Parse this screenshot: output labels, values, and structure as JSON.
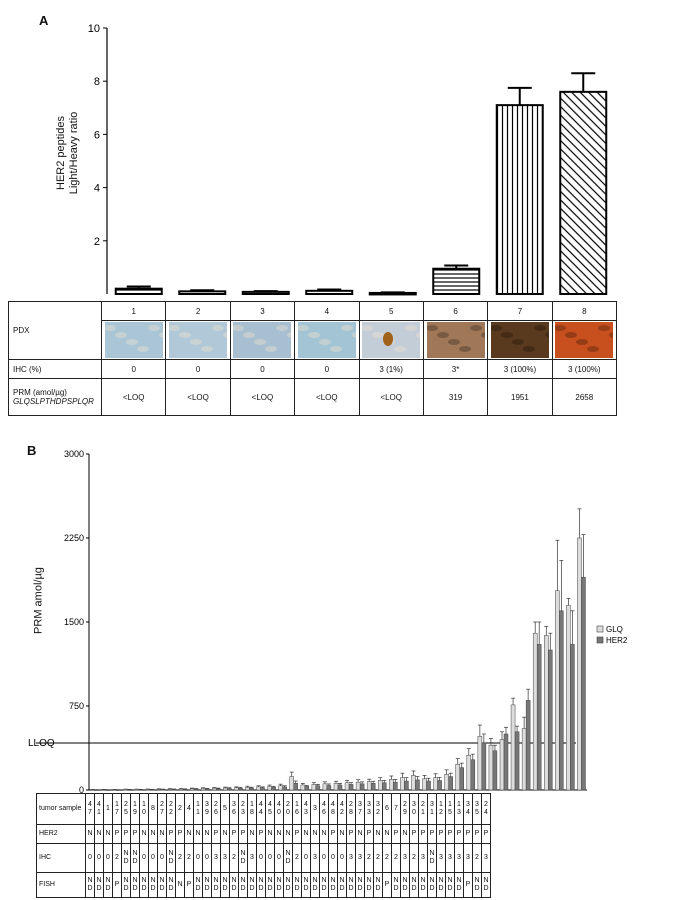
{
  "panel_a": {
    "letter": "A",
    "ylabel_line1": "HER2 peptides",
    "ylabel_line2": "Light/Heavy ratio",
    "table": {
      "row_labels": {
        "pdx": "PDX",
        "ihc": "IHC (%)",
        "prm_line1": "PRM (amol/µg)",
        "prm_line2": "GLQSLPTHDPSPLQR"
      },
      "columns": [
        {
          "pdx": "1",
          "ihc": "0",
          "prm": "<LOQ",
          "tissue_color": "#a9c5d6"
        },
        {
          "pdx": "2",
          "ihc": "0",
          "prm": "<LOQ",
          "tissue_color": "#b0c8d8"
        },
        {
          "pdx": "3",
          "ihc": "0",
          "prm": "<LOQ",
          "tissue_color": "#a7bfd0"
        },
        {
          "pdx": "4",
          "ihc": "0",
          "prm": "<LOQ",
          "tissue_color": "#a3c4d4"
        },
        {
          "pdx": "5",
          "ihc": "3 (1%)",
          "prm": "<LOQ",
          "tissue_color": "#c3cdd8"
        },
        {
          "pdx": "6",
          "ihc": "3*",
          "prm": "319",
          "tissue_color": "#a07858"
        },
        {
          "pdx": "7",
          "ihc": "3 (100%)",
          "prm": "1951",
          "tissue_color": "#5a3a1e"
        },
        {
          "pdx": "8",
          "ihc": "3 (100%)",
          "prm": "2658",
          "tissue_color": "#c8501e"
        }
      ]
    }
  },
  "panel_b": {
    "letter": "B",
    "ylabel": "PRM amol/µg",
    "lloq_label": "LLOQ",
    "legend": [
      {
        "name": "GLQ",
        "color": "#dddddd"
      },
      {
        "name": "HER2",
        "color": "#777777"
      }
    ],
    "table": {
      "row_labels": {
        "tumor": "tumor sample",
        "her2": "HER2",
        "ihc": "IHC",
        "fish": "FISH"
      },
      "tumor": [
        "4 7",
        "4 1",
        "1",
        "1 7",
        "2 5",
        "1 9",
        "1 0",
        "8",
        "2 7",
        "2 2",
        "2",
        "4",
        "1 1",
        "3 9",
        "2 6",
        "5",
        "3 6",
        "2 3",
        "1 8",
        "4 4",
        "4 5",
        "4 0",
        "2 0",
        "1 6",
        "4 3",
        "3",
        "4 6",
        "4 8",
        "4 2",
        "2 8",
        "3 7",
        "3 3",
        "3 2",
        "6",
        "7",
        "2 9",
        "3 0",
        "2 1",
        "3 1",
        "1 2",
        "1 5",
        "1 3",
        "3 4",
        "3 5",
        "2 4"
      ],
      "her2": [
        "N",
        "N",
        "N",
        "P",
        "P",
        "P",
        "N",
        "N",
        "N",
        "P",
        "P",
        "N",
        "N",
        "N",
        "P",
        "N",
        "P",
        "P",
        "N",
        "P",
        "N",
        "N",
        "N",
        "P",
        "N",
        "N",
        "N",
        "P",
        "N",
        "P",
        "N",
        "P",
        "N",
        "N",
        "P",
        "N",
        "P",
        "P",
        "P",
        "P",
        "P",
        "P",
        "P",
        "P",
        "P"
      ],
      "ihc": [
        "0",
        "0",
        "0",
        "2",
        "N D",
        "N D",
        "0",
        "0",
        "0",
        "N D",
        "2",
        "2",
        "0",
        "0",
        "3",
        "3",
        "2",
        "N D",
        "3",
        "0",
        "0",
        "0",
        "N D",
        "2",
        "0",
        "3",
        "0",
        "0",
        "0",
        "3",
        "3",
        "2",
        "2",
        "2",
        "2",
        "3",
        "2",
        "3",
        "N D",
        "3",
        "3",
        "3",
        "3",
        "2",
        "3"
      ],
      "fish": [
        "N D",
        "N D",
        "N D",
        "P",
        "N D",
        "N D",
        "N D",
        "N D",
        "N D",
        "N D",
        "N",
        "P",
        "N D",
        "N D",
        "N D",
        "N D",
        "N D",
        "N D",
        "N D",
        "N D",
        "N D",
        "N D",
        "N D",
        "N D",
        "N D",
        "N D",
        "N D",
        "N D",
        "N D",
        "N D",
        "N D",
        "N D",
        "N D",
        "P",
        "N D",
        "N D",
        "N D",
        "N D",
        "N D",
        "N D",
        "N D",
        "N D",
        "P",
        "N D",
        "N D"
      ]
    }
  },
  "chart_data": [
    {
      "type": "bar",
      "title": "",
      "xlabel": "PDX",
      "ylabel": "HER2 peptides Light/Heavy ratio",
      "ylim": [
        0,
        10
      ],
      "yticks": [
        2,
        4,
        6,
        8,
        10
      ],
      "categories": [
        "1",
        "2",
        "3",
        "4",
        "5",
        "6",
        "7",
        "8"
      ],
      "values": [
        0.2,
        0.1,
        0.08,
        0.12,
        0.04,
        0.95,
        7.1,
        7.6
      ],
      "errors": [
        0.08,
        0.04,
        0.03,
        0.05,
        0.02,
        0.12,
        0.65,
        0.7
      ],
      "patterns": [
        "horizontal",
        "horizontal",
        "horizontal",
        "horizontal",
        "horizontal",
        "horizontal",
        "vertical",
        "diagonal"
      ]
    },
    {
      "type": "bar",
      "title": "",
      "xlabel": "tumor sample",
      "ylabel": "PRM amol/µg",
      "ylim": [
        0,
        3000
      ],
      "yticks": [
        0,
        750,
        1500,
        2250,
        3000
      ],
      "lloq": 420,
      "categories": [
        "47",
        "41",
        "1",
        "17",
        "25",
        "19",
        "10",
        "8",
        "27",
        "22",
        "2",
        "4",
        "11",
        "39",
        "26",
        "5",
        "36",
        "23",
        "18",
        "44",
        "45",
        "40",
        "20",
        "16",
        "43",
        "3",
        "46",
        "48",
        "42",
        "28",
        "37",
        "33",
        "32",
        "6",
        "7",
        "29",
        "30",
        "21",
        "31",
        "12",
        "15",
        "13",
        "34",
        "35",
        "24"
      ],
      "series": [
        {
          "name": "GLQ",
          "values": [
            3,
            3,
            3,
            5,
            5,
            6,
            7,
            8,
            9,
            12,
            14,
            16,
            18,
            20,
            24,
            28,
            32,
            38,
            120,
            45,
            50,
            55,
            60,
            65,
            70,
            75,
            85,
            95,
            110,
            130,
            100,
            110,
            140,
            230,
            310,
            480,
            400,
            450,
            760,
            550,
            1400,
            1380,
            1780,
            1650,
            2250
          ],
          "errors": [
            2,
            2,
            2,
            3,
            3,
            3,
            4,
            4,
            4,
            5,
            6,
            6,
            8,
            8,
            10,
            10,
            12,
            14,
            40,
            14,
            15,
            18,
            18,
            20,
            22,
            22,
            25,
            30,
            40,
            40,
            30,
            35,
            40,
            50,
            60,
            100,
            60,
            70,
            60,
            100,
            100,
            80,
            450,
            60,
            260
          ]
        },
        {
          "name": "HER2",
          "values": [
            2,
            2,
            2,
            3,
            4,
            4,
            5,
            6,
            7,
            9,
            10,
            12,
            14,
            16,
            18,
            20,
            24,
            28,
            60,
            32,
            38,
            40,
            45,
            50,
            55,
            60,
            65,
            70,
            80,
            90,
            80,
            85,
            120,
            200,
            270,
            420,
            350,
            500,
            520,
            800,
            1300,
            1250,
            1600,
            1300,
            1900
          ],
          "errors": [
            1,
            1,
            1,
            2,
            2,
            2,
            3,
            3,
            3,
            4,
            4,
            5,
            6,
            6,
            7,
            8,
            9,
            10,
            20,
            10,
            12,
            14,
            14,
            16,
            18,
            18,
            20,
            24,
            30,
            30,
            25,
            28,
            30,
            40,
            50,
            80,
            50,
            60,
            50,
            100,
            200,
            150,
            450,
            300,
            380
          ]
        }
      ]
    }
  ]
}
